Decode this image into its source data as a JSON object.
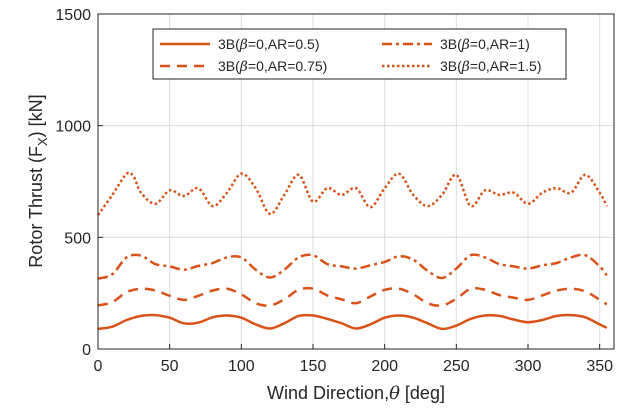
{
  "chart_data": {
    "type": "line",
    "title": "",
    "xlabel_text": "Wind Direction,",
    "xlabel_symbol": "θ",
    "xlabel_unit": " [deg]",
    "ylabel_text": "Rotor Thrust (F",
    "ylabel_sub": "X",
    "ylabel_unit": ") [kN]",
    "xlim": [
      0,
      360
    ],
    "ylim": [
      0,
      1500
    ],
    "xticks": [
      0,
      50,
      100,
      150,
      200,
      250,
      300,
      350
    ],
    "yticks": [
      0,
      500,
      1000,
      1500
    ],
    "grid": true,
    "legend_position": "top-center",
    "color": "#D95319",
    "series": [
      {
        "name": "3B(β=0,AR=0.5)",
        "name_prefix": "3B(",
        "name_symbol": "β",
        "name_suffix": "=0,AR=0.5)",
        "style": "solid",
        "x": [
          0,
          10,
          20,
          30,
          40,
          50,
          60,
          70,
          80,
          90,
          100,
          110,
          120,
          130,
          140,
          150,
          160,
          170,
          180,
          190,
          200,
          210,
          220,
          230,
          240,
          250,
          260,
          270,
          280,
          290,
          300,
          310,
          320,
          330,
          340,
          350,
          355
        ],
        "y": [
          90,
          100,
          130,
          148,
          152,
          140,
          115,
          118,
          142,
          150,
          140,
          110,
          92,
          115,
          148,
          150,
          135,
          115,
          92,
          110,
          140,
          150,
          140,
          115,
          90,
          105,
          135,
          150,
          148,
          132,
          120,
          130,
          148,
          152,
          142,
          110,
          95
        ]
      },
      {
        "name": "3B(β=0,AR=0.75)",
        "name_prefix": "3B(",
        "name_symbol": "β",
        "name_suffix": "=0,AR=0.75)",
        "style": "dash",
        "x": [
          0,
          10,
          20,
          30,
          40,
          50,
          60,
          70,
          80,
          90,
          100,
          110,
          120,
          130,
          140,
          150,
          160,
          170,
          180,
          190,
          200,
          210,
          220,
          230,
          240,
          250,
          260,
          270,
          280,
          290,
          300,
          310,
          320,
          330,
          340,
          350,
          355
        ],
        "y": [
          195,
          210,
          255,
          270,
          262,
          238,
          220,
          238,
          262,
          270,
          245,
          205,
          195,
          222,
          265,
          270,
          240,
          222,
          205,
          235,
          265,
          270,
          245,
          205,
          195,
          225,
          270,
          265,
          242,
          230,
          220,
          240,
          262,
          270,
          258,
          220,
          200
        ]
      },
      {
        "name": "3B(β=0,AR=1)",
        "name_prefix": "3B(",
        "name_symbol": "β",
        "name_suffix": "=0,AR=1)",
        "style": "dashdot",
        "x": [
          0,
          10,
          20,
          30,
          40,
          50,
          60,
          70,
          80,
          90,
          100,
          110,
          120,
          130,
          140,
          150,
          160,
          170,
          180,
          190,
          200,
          210,
          220,
          230,
          240,
          250,
          260,
          270,
          280,
          290,
          300,
          310,
          320,
          330,
          340,
          350,
          355
        ],
        "y": [
          315,
          335,
          410,
          418,
          380,
          370,
          355,
          372,
          385,
          410,
          410,
          355,
          320,
          355,
          410,
          420,
          380,
          370,
          360,
          375,
          390,
          415,
          400,
          350,
          318,
          360,
          420,
          410,
          380,
          370,
          360,
          375,
          385,
          410,
          420,
          370,
          330
        ]
      },
      {
        "name": "3B(β=0,AR=1.5)",
        "name_prefix": "3B(",
        "name_symbol": "β",
        "name_suffix": "=0,AR=1.5)",
        "style": "dot",
        "x": [
          0,
          10,
          20,
          25,
          30,
          40,
          50,
          60,
          70,
          80,
          90,
          100,
          110,
          120,
          130,
          140,
          150,
          160,
          170,
          180,
          190,
          200,
          210,
          220,
          230,
          240,
          250,
          260,
          270,
          280,
          290,
          300,
          310,
          320,
          330,
          340,
          350,
          355
        ],
        "y": [
          600,
          690,
          785,
          770,
          700,
          650,
          710,
          685,
          720,
          640,
          700,
          785,
          720,
          605,
          690,
          780,
          660,
          720,
          690,
          720,
          635,
          720,
          785,
          690,
          640,
          690,
          780,
          640,
          710,
          690,
          700,
          650,
          700,
          720,
          700,
          780,
          700,
          640
        ]
      }
    ]
  }
}
